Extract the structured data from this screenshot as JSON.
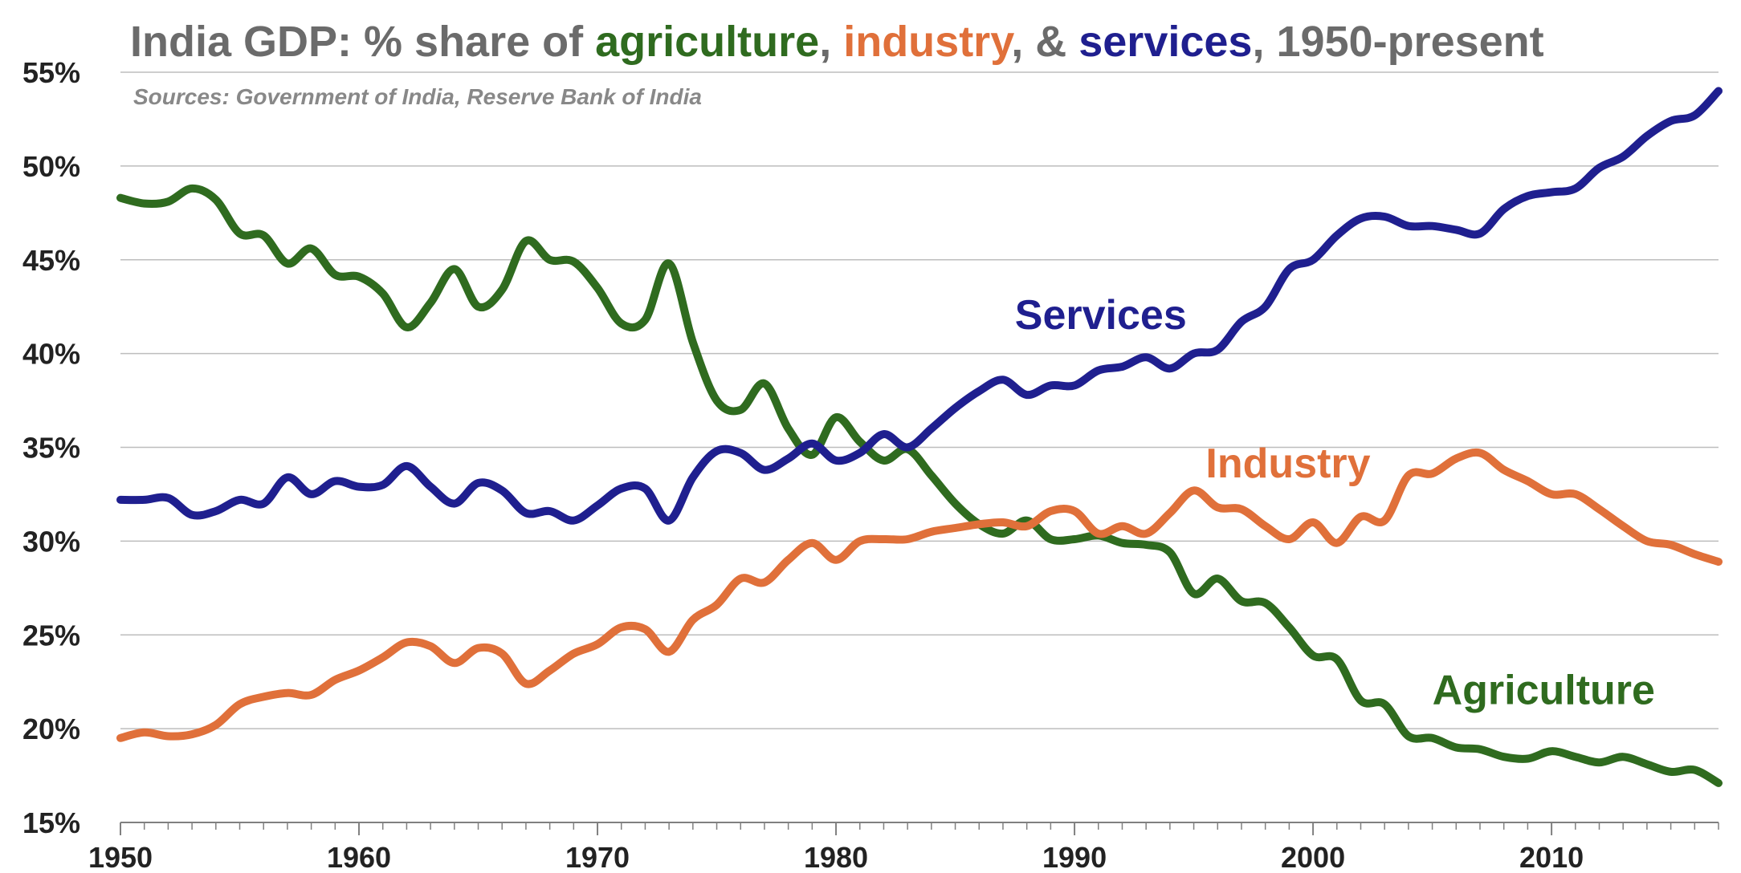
{
  "chart_data": {
    "type": "line",
    "title_segments": [
      {
        "text": "India GDP: % share of ",
        "color": "#6b6b6b"
      },
      {
        "text": "agriculture",
        "color": "#2f6b1f"
      },
      {
        "text": ", ",
        "color": "#6b6b6b"
      },
      {
        "text": "industry",
        "color": "#e0703a"
      },
      {
        "text": ", & ",
        "color": "#6b6b6b"
      },
      {
        "text": "services",
        "color": "#1f1f8f"
      },
      {
        "text": ", 1950-present",
        "color": "#6b6b6b"
      }
    ],
    "subtitle": "Sources: Government of India, Reserve Bank of India",
    "xlim": [
      1950,
      2017
    ],
    "ylim": [
      15,
      55
    ],
    "x_ticks": [
      1950,
      1960,
      1970,
      1980,
      1990,
      2000,
      2010
    ],
    "x_tick_labels": [
      "1950",
      "1960",
      "1970",
      "1980",
      "1990",
      "2000",
      "2010"
    ],
    "y_ticks": [
      15,
      20,
      25,
      30,
      35,
      40,
      45,
      50,
      55
    ],
    "y_tick_labels": [
      "15%",
      "20%",
      "25%",
      "30%",
      "35%",
      "40%",
      "45%",
      "50%",
      "55%"
    ],
    "grid": "horizontal",
    "legend": "inline labels",
    "series": [
      {
        "name": "Agriculture",
        "color": "#2f6b1f",
        "label_position": {
          "x": 2005,
          "y": 21.3
        },
        "x": [
          1950,
          1951,
          1952,
          1953,
          1954,
          1955,
          1956,
          1957,
          1958,
          1959,
          1960,
          1961,
          1962,
          1963,
          1964,
          1965,
          1966,
          1967,
          1968,
          1969,
          1970,
          1971,
          1972,
          1973,
          1974,
          1975,
          1976,
          1977,
          1978,
          1979,
          1980,
          1981,
          1982,
          1983,
          1984,
          1985,
          1986,
          1987,
          1988,
          1989,
          1990,
          1991,
          1992,
          1993,
          1994,
          1995,
          1996,
          1997,
          1998,
          1999,
          2000,
          2001,
          2002,
          2003,
          2004,
          2005,
          2006,
          2007,
          2008,
          2009,
          2010,
          2011,
          2012,
          2013,
          2014,
          2015,
          2016,
          2017
        ],
        "values": [
          48.3,
          48.0,
          48.1,
          48.8,
          48.2,
          46.4,
          46.3,
          44.8,
          45.6,
          44.2,
          44.1,
          43.2,
          41.4,
          42.7,
          44.5,
          42.5,
          43.4,
          46.0,
          45.0,
          44.9,
          43.5,
          41.6,
          41.8,
          44.8,
          40.6,
          37.5,
          37.0,
          38.4,
          36.0,
          34.6,
          36.6,
          35.3,
          34.3,
          34.9,
          33.5,
          32.0,
          30.9,
          30.4,
          31.1,
          30.1,
          30.1,
          30.3,
          29.9,
          29.8,
          29.4,
          27.2,
          28.0,
          26.8,
          26.7,
          25.4,
          23.9,
          23.7,
          21.5,
          21.3,
          19.6,
          19.5,
          19.0,
          18.9,
          18.5,
          18.4,
          18.8,
          18.5,
          18.2,
          18.5,
          18.1,
          17.7,
          17.8,
          17.1
        ]
      },
      {
        "name": "Industry",
        "color": "#e0703a",
        "label_position": {
          "x": 1995.5,
          "y": 33.4
        },
        "x": [
          1950,
          1951,
          1952,
          1953,
          1954,
          1955,
          1956,
          1957,
          1958,
          1959,
          1960,
          1961,
          1962,
          1963,
          1964,
          1965,
          1966,
          1967,
          1968,
          1969,
          1970,
          1971,
          1972,
          1973,
          1974,
          1975,
          1976,
          1977,
          1978,
          1979,
          1980,
          1981,
          1982,
          1983,
          1984,
          1985,
          1986,
          1987,
          1988,
          1989,
          1990,
          1991,
          1992,
          1993,
          1994,
          1995,
          1996,
          1997,
          1998,
          1999,
          2000,
          2001,
          2002,
          2003,
          2004,
          2005,
          2006,
          2007,
          2008,
          2009,
          2010,
          2011,
          2012,
          2013,
          2014,
          2015,
          2016,
          2017
        ],
        "values": [
          19.5,
          19.8,
          19.6,
          19.7,
          20.2,
          21.3,
          21.7,
          21.9,
          21.8,
          22.6,
          23.1,
          23.8,
          24.6,
          24.4,
          23.5,
          24.3,
          24.0,
          22.4,
          23.1,
          24.0,
          24.5,
          25.4,
          25.3,
          24.1,
          25.8,
          26.6,
          28.0,
          27.8,
          29.0,
          29.9,
          29.0,
          30.0,
          30.1,
          30.1,
          30.5,
          30.7,
          30.9,
          31.0,
          30.8,
          31.6,
          31.6,
          30.4,
          30.8,
          30.4,
          31.5,
          32.7,
          31.8,
          31.7,
          30.8,
          30.1,
          31.0,
          29.9,
          31.3,
          31.1,
          33.5,
          33.6,
          34.4,
          34.7,
          33.8,
          33.2,
          32.5,
          32.5,
          31.7,
          30.8,
          30.0,
          29.8,
          29.3,
          28.9
        ]
      },
      {
        "name": "Services",
        "color": "#1f1f8f",
        "label_position": {
          "x": 1987.5,
          "y": 41.3
        },
        "x": [
          1950,
          1951,
          1952,
          1953,
          1954,
          1955,
          1956,
          1957,
          1958,
          1959,
          1960,
          1961,
          1962,
          1963,
          1964,
          1965,
          1966,
          1967,
          1968,
          1969,
          1970,
          1971,
          1972,
          1973,
          1974,
          1975,
          1976,
          1977,
          1978,
          1979,
          1980,
          1981,
          1982,
          1983,
          1984,
          1985,
          1986,
          1987,
          1988,
          1989,
          1990,
          1991,
          1992,
          1993,
          1994,
          1995,
          1996,
          1997,
          1998,
          1999,
          2000,
          2001,
          2002,
          2003,
          2004,
          2005,
          2006,
          2007,
          2008,
          2009,
          2010,
          2011,
          2012,
          2013,
          2014,
          2015,
          2016,
          2017
        ],
        "values": [
          32.2,
          32.2,
          32.3,
          31.4,
          31.6,
          32.2,
          32.0,
          33.4,
          32.5,
          33.2,
          32.9,
          33.0,
          34.0,
          32.9,
          32.0,
          33.1,
          32.7,
          31.5,
          31.6,
          31.1,
          31.9,
          32.8,
          32.8,
          31.1,
          33.4,
          34.8,
          34.7,
          33.8,
          34.4,
          35.2,
          34.3,
          34.7,
          35.7,
          35.0,
          36.0,
          37.1,
          38.0,
          38.6,
          37.8,
          38.3,
          38.3,
          39.1,
          39.3,
          39.8,
          39.2,
          40.0,
          40.2,
          41.7,
          42.5,
          44.5,
          45.0,
          46.3,
          47.2,
          47.3,
          46.8,
          46.8,
          46.6,
          46.4,
          47.7,
          48.4,
          48.6,
          48.8,
          49.9,
          50.5,
          51.6,
          52.4,
          52.7,
          54.0
        ]
      }
    ]
  }
}
